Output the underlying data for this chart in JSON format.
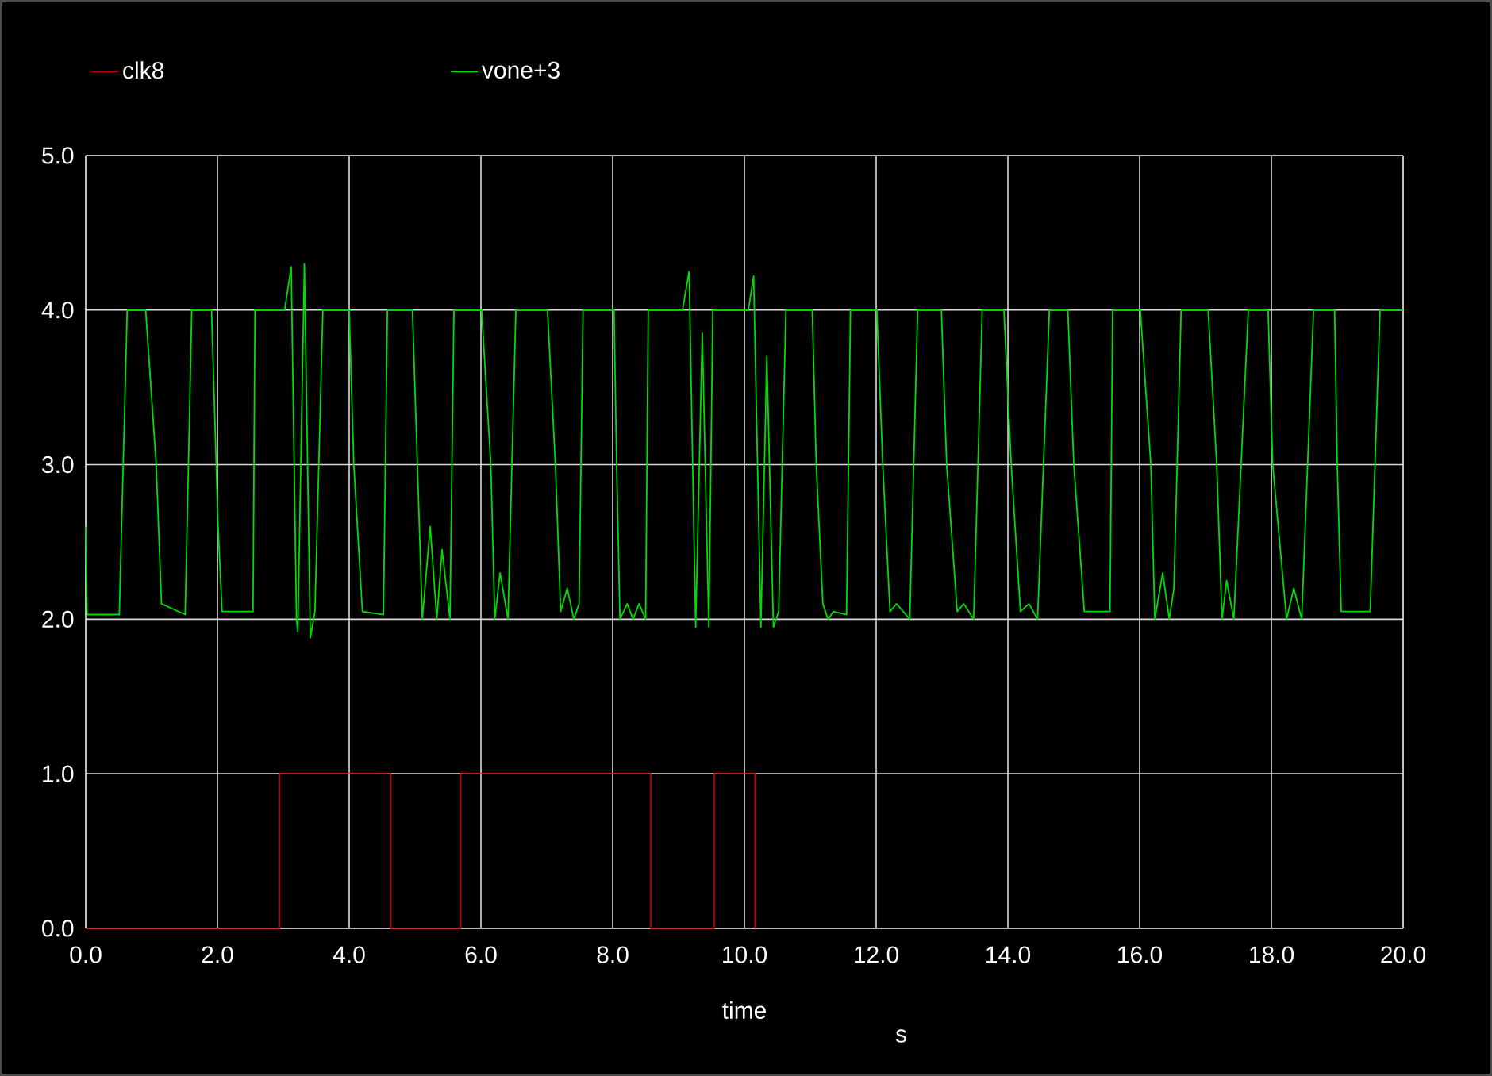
{
  "chart_data": {
    "type": "line",
    "xlabel": "time",
    "annotations": [
      "s"
    ],
    "legend": "top",
    "grid": true,
    "marker": "none",
    "xlim": [
      0,
      20
    ],
    "ylim": [
      0,
      5
    ],
    "xticks": [
      {
        "value": 0,
        "label": "0.0"
      },
      {
        "value": 2,
        "label": "2.0"
      },
      {
        "value": 4,
        "label": "4.0"
      },
      {
        "value": 6,
        "label": "6.0"
      },
      {
        "value": 8,
        "label": "8.0"
      },
      {
        "value": 10,
        "label": "10.0"
      },
      {
        "value": 12,
        "label": "12.0"
      },
      {
        "value": 14,
        "label": "14.0"
      },
      {
        "value": 16,
        "label": "16.0"
      },
      {
        "value": 18,
        "label": "18.0"
      },
      {
        "value": 20,
        "label": "20.0"
      }
    ],
    "yticks": [
      {
        "value": 0,
        "label": "0.0"
      },
      {
        "value": 1,
        "label": "1.0"
      },
      {
        "value": 2,
        "label": "2.0"
      },
      {
        "value": 3,
        "label": "3.0"
      },
      {
        "value": 4,
        "label": "4.0"
      },
      {
        "value": 5,
        "label": "5.0"
      }
    ],
    "series": [
      {
        "name": "clk8",
        "color": "#c00000",
        "x": [
          0,
          2.94,
          2.94,
          4.63,
          4.63,
          5.69,
          5.69,
          8.58,
          8.58,
          9.54,
          9.54,
          10.16,
          10.16
        ],
        "values": [
          0,
          0,
          1,
          1,
          0,
          0,
          1,
          1,
          0,
          0,
          1,
          1,
          0
        ]
      },
      {
        "name": "vone+3",
        "color": "#00dd00",
        "x": [
          0,
          0.02,
          0.51,
          0.63,
          0.91,
          1.07,
          1.15,
          1.51,
          1.61,
          1.91,
          2.01,
          2.07,
          2.54,
          2.57,
          3.02,
          3.12,
          3.2,
          3.22,
          3.32,
          3.41,
          3.48,
          3.6,
          4.0,
          4.07,
          4.2,
          4.52,
          4.58,
          4.96,
          5.11,
          5.23,
          5.33,
          5.41,
          5.53,
          5.59,
          6.01,
          6.15,
          6.21,
          6.29,
          6.41,
          6.53,
          7.01,
          7.13,
          7.21,
          7.31,
          7.41,
          7.49,
          7.55,
          8.02,
          8.06,
          8.11,
          8.22,
          8.31,
          8.4,
          8.5,
          8.54,
          9.06,
          9.16,
          9.26,
          9.36,
          9.46,
          9.52,
          10.06,
          10.14,
          10.25,
          10.34,
          10.44,
          10.52,
          10.63,
          11.03,
          11.09,
          11.19,
          11.27,
          11.35,
          11.55,
          11.61,
          12.01,
          12.1,
          12.21,
          12.31,
          12.51,
          12.63,
          12.99,
          13.07,
          13.23,
          13.33,
          13.48,
          13.61,
          13.94,
          14.05,
          14.19,
          14.32,
          14.45,
          14.63,
          14.91,
          15.0,
          15.16,
          15.55,
          15.59,
          16.01,
          16.17,
          16.23,
          16.35,
          16.45,
          16.52,
          16.63,
          17.04,
          17.17,
          17.25,
          17.32,
          17.43,
          17.65,
          17.95,
          18.02,
          18.23,
          18.34,
          18.46,
          18.64,
          18.96,
          19.0,
          19.06,
          19.5,
          19.65,
          20.0
        ],
        "values": [
          2.6,
          2.03,
          2.03,
          4.0,
          4.0,
          3.0,
          2.1,
          2.03,
          4.0,
          4.0,
          2.6,
          2.05,
          2.05,
          4.0,
          4.0,
          4.28,
          2.0,
          1.92,
          4.3,
          1.88,
          2.05,
          4.0,
          4.0,
          3.0,
          2.05,
          2.03,
          4.0,
          4.0,
          2.0,
          2.6,
          2.0,
          2.45,
          2.0,
          4.0,
          4.0,
          3.0,
          2.0,
          2.3,
          2.0,
          4.0,
          4.0,
          3.0,
          2.05,
          2.2,
          2.0,
          2.1,
          4.0,
          4.0,
          3.0,
          2.0,
          2.1,
          2.0,
          2.1,
          2.0,
          4.0,
          4.0,
          4.25,
          1.95,
          3.85,
          1.95,
          4.0,
          4.0,
          4.22,
          1.95,
          3.7,
          1.95,
          2.05,
          4.0,
          4.0,
          3.0,
          2.1,
          2.0,
          2.05,
          2.03,
          4.0,
          4.0,
          3.0,
          2.05,
          2.1,
          2.0,
          4.0,
          4.0,
          3.0,
          2.05,
          2.1,
          2.0,
          4.0,
          4.0,
          3.0,
          2.05,
          2.1,
          2.0,
          4.0,
          4.0,
          3.0,
          2.05,
          2.05,
          4.0,
          4.0,
          3.0,
          2.0,
          2.3,
          2.0,
          2.2,
          4.0,
          4.0,
          3.0,
          2.0,
          2.25,
          2.0,
          4.0,
          4.0,
          3.0,
          2.0,
          2.2,
          2.0,
          4.0,
          4.0,
          3.0,
          2.05,
          2.05,
          4.0,
          4.0
        ]
      }
    ]
  }
}
